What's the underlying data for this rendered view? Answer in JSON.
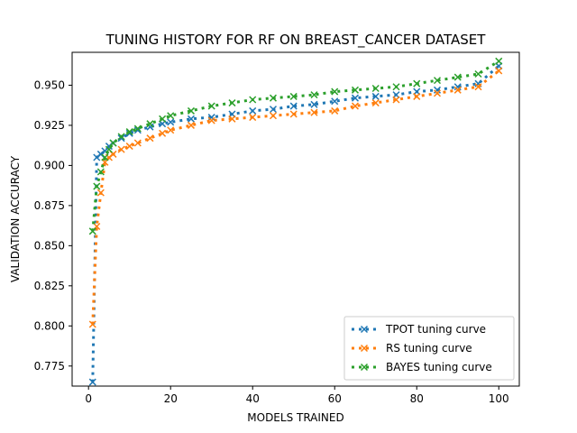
{
  "chart_data": {
    "type": "line",
    "title": "TUNING HISTORY FOR RF ON BREAST_CANCER DATASET",
    "xlabel": "MODELS TRAINED",
    "ylabel": "VALIDATION ACCURACY",
    "xlim": [
      -4,
      105
    ],
    "ylim": [
      0.7625,
      0.9705
    ],
    "xticks": [
      0,
      20,
      40,
      60,
      80,
      100
    ],
    "yticks": [
      0.775,
      0.8,
      0.825,
      0.85,
      0.875,
      0.9,
      0.925,
      0.95
    ],
    "ytick_labels": [
      "0.775",
      "0.800",
      "0.825",
      "0.850",
      "0.875",
      "0.900",
      "0.925",
      "0.950"
    ],
    "grid": false,
    "legend_position": "lower-right",
    "marker": "x",
    "line_style": "dotted",
    "series": [
      {
        "name": "TPOT tuning curve",
        "color": "#1f77b4",
        "x": [
          1,
          2,
          3,
          4,
          5,
          6,
          8,
          10,
          12,
          15,
          18,
          20,
          25,
          30,
          35,
          40,
          45,
          50,
          55,
          60,
          65,
          70,
          75,
          80,
          85,
          90,
          95,
          100
        ],
        "values": [
          0.765,
          0.905,
          0.907,
          0.909,
          0.912,
          0.914,
          0.917,
          0.92,
          0.922,
          0.924,
          0.926,
          0.927,
          0.929,
          0.93,
          0.932,
          0.934,
          0.935,
          0.937,
          0.938,
          0.94,
          0.942,
          0.943,
          0.944,
          0.946,
          0.947,
          0.949,
          0.951,
          0.962
        ]
      },
      {
        "name": "RS tuning curve",
        "color": "#ff7f0e",
        "x": [
          1,
          2,
          3,
          4,
          5,
          6,
          8,
          10,
          12,
          15,
          18,
          20,
          25,
          30,
          35,
          40,
          45,
          50,
          55,
          60,
          65,
          70,
          75,
          80,
          85,
          90,
          95,
          100
        ],
        "values": [
          0.801,
          0.862,
          0.883,
          0.902,
          0.905,
          0.907,
          0.91,
          0.912,
          0.914,
          0.917,
          0.92,
          0.922,
          0.925,
          0.928,
          0.929,
          0.93,
          0.931,
          0.932,
          0.933,
          0.934,
          0.937,
          0.939,
          0.941,
          0.943,
          0.945,
          0.947,
          0.949,
          0.959
        ]
      },
      {
        "name": "BAYES tuning curve",
        "color": "#2ca02c",
        "x": [
          1,
          2,
          3,
          4,
          5,
          6,
          8,
          10,
          12,
          15,
          18,
          20,
          25,
          30,
          35,
          40,
          45,
          50,
          55,
          60,
          65,
          70,
          75,
          80,
          85,
          90,
          95,
          100
        ],
        "values": [
          0.859,
          0.887,
          0.896,
          0.905,
          0.91,
          0.914,
          0.918,
          0.921,
          0.923,
          0.926,
          0.929,
          0.931,
          0.934,
          0.937,
          0.939,
          0.941,
          0.942,
          0.943,
          0.944,
          0.946,
          0.947,
          0.948,
          0.949,
          0.951,
          0.953,
          0.955,
          0.957,
          0.965
        ]
      }
    ]
  }
}
